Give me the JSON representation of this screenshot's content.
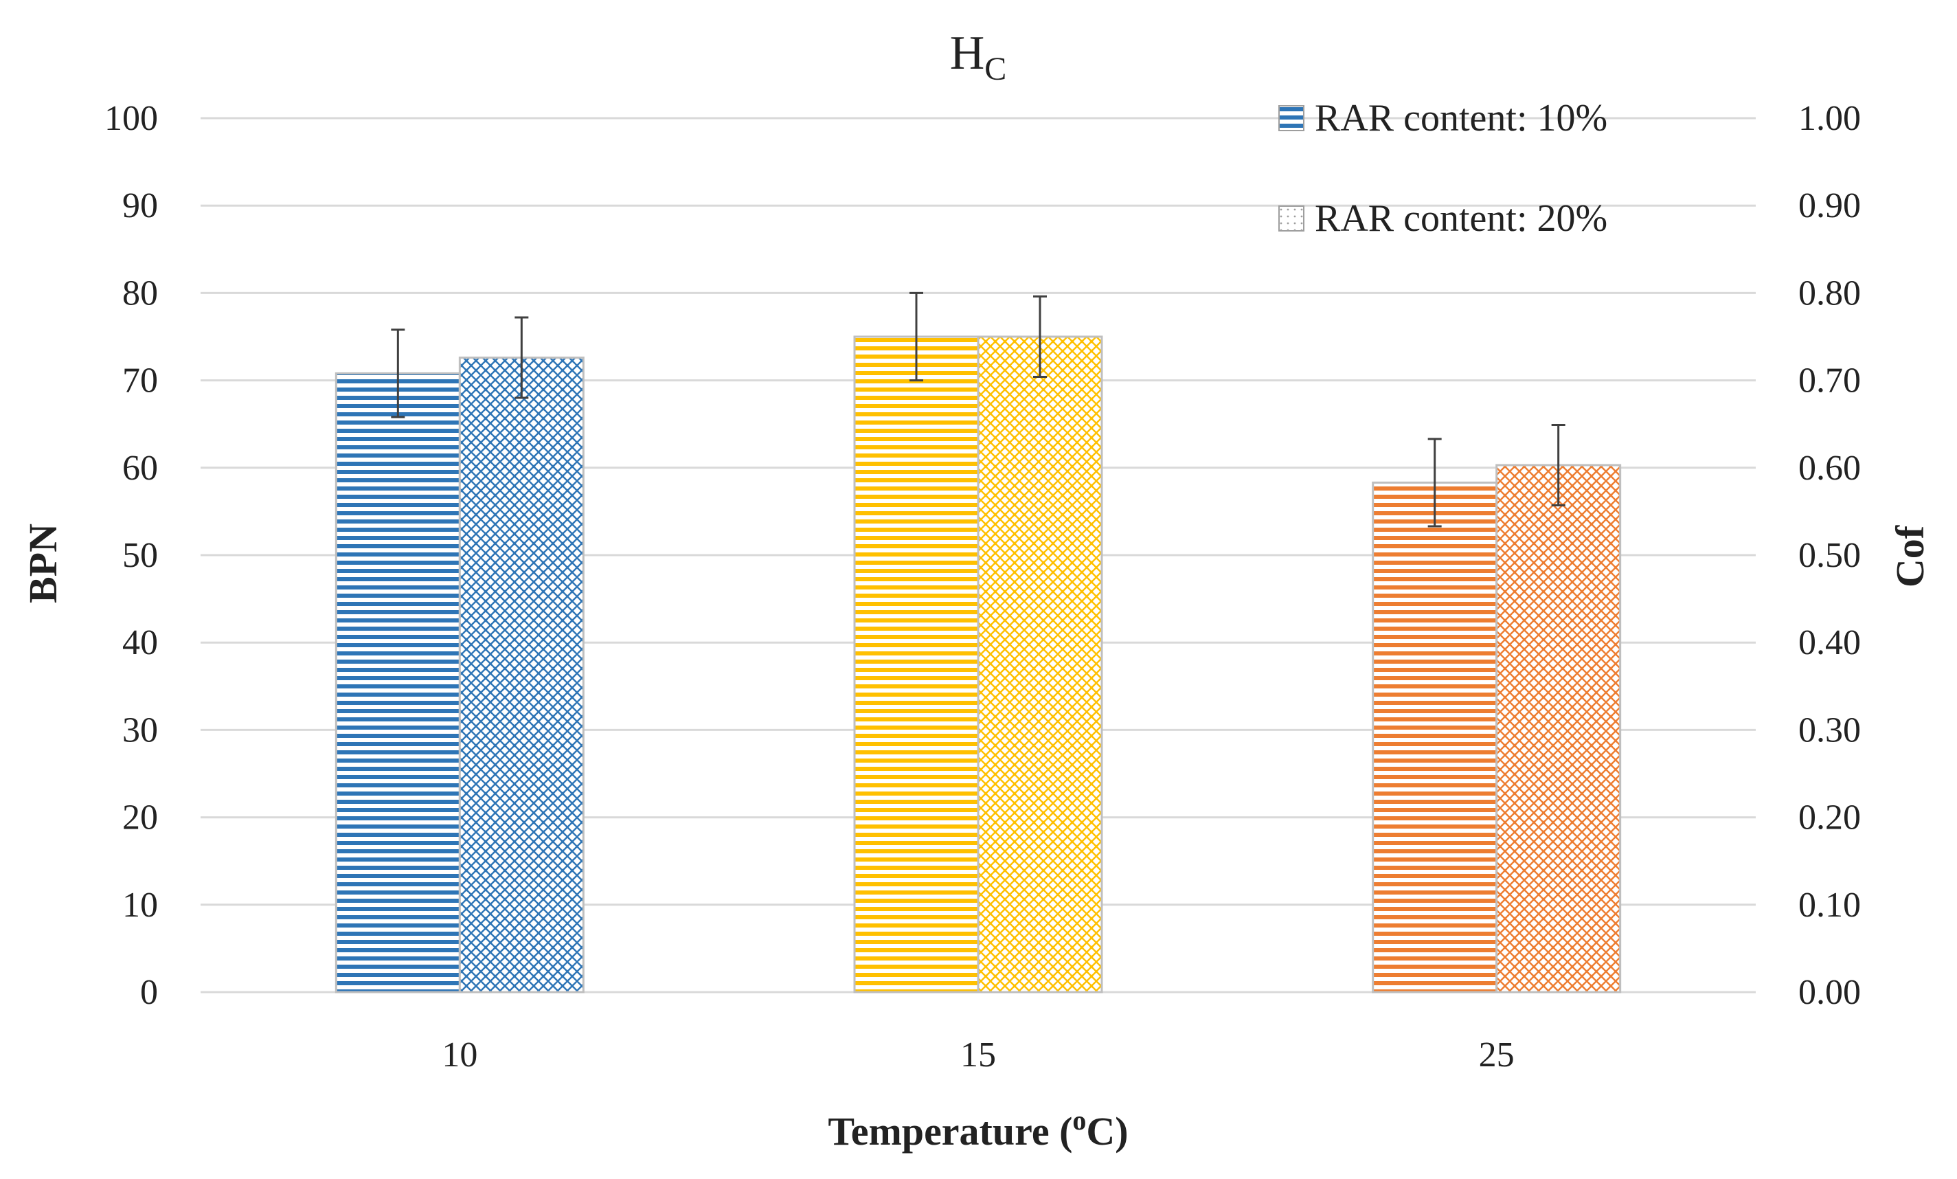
{
  "chart_data": {
    "type": "bar",
    "title": "H",
    "title_subscript": "C",
    "xlabel": "Temperature (",
    "xlabel_superscript": "o",
    "xlabel_suffix": "C)",
    "ylabel": "BPN",
    "y2label": "Cof",
    "ylim": [
      0,
      100
    ],
    "y2lim": [
      0.0,
      1.0
    ],
    "y_ticks": [
      "0",
      "10",
      "20",
      "30",
      "40",
      "50",
      "60",
      "70",
      "80",
      "90",
      "100"
    ],
    "y2_ticks": [
      "0.00",
      "0.10",
      "0.20",
      "0.30",
      "0.40",
      "0.50",
      "0.60",
      "0.70",
      "0.80",
      "0.90",
      "1.00"
    ],
    "categories": [
      "10",
      "15",
      "25"
    ],
    "grid": true,
    "legend_position": "top-right",
    "series": [
      {
        "name": "RAR content: 10%",
        "pattern": "horizontal-stripes",
        "values": [
          70.8,
          75.0,
          58.3
        ],
        "error": [
          5.0,
          5.0,
          5.0
        ]
      },
      {
        "name": "RAR content: 20%",
        "pattern": "crosshatch",
        "values": [
          72.6,
          75.0,
          60.3
        ],
        "error": [
          4.6,
          4.6,
          4.6
        ]
      }
    ],
    "category_colors": [
      "#2e75b6",
      "#ffc000",
      "#ed7d31"
    ]
  }
}
